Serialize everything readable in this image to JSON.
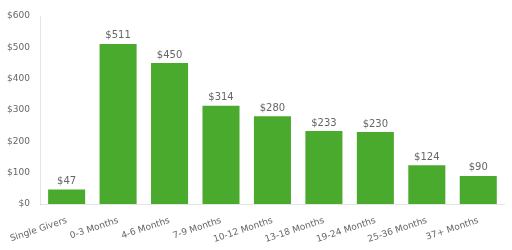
{
  "chart_data": {
    "type": "bar",
    "categories": [
      "Single Givers",
      "0-3 Months",
      "4-6 Months",
      "7-9 Months",
      "10-12 Months",
      "13-18 Months",
      "19-24 Months",
      "25-36 Months",
      "37+ Months"
    ],
    "values": [
      47,
      511,
      450,
      314,
      280,
      233,
      230,
      124,
      90
    ],
    "value_labels": [
      "$47",
      "$511",
      "$450",
      "$314",
      "$280",
      "$233",
      "$230",
      "$124",
      "$90"
    ],
    "data_labels": true,
    "color": "#4aaa2e",
    "ylim": [
      0,
      600
    ],
    "yticks": [
      {
        "value": 0,
        "label": "$0"
      },
      {
        "value": 100,
        "label": "$100"
      },
      {
        "value": 200,
        "label": "$200"
      },
      {
        "value": 300,
        "label": "$300"
      },
      {
        "value": 400,
        "label": "$400"
      },
      {
        "value": 500,
        "label": "$500"
      },
      {
        "value": 600,
        "label": "$600"
      }
    ],
    "grid": false
  }
}
